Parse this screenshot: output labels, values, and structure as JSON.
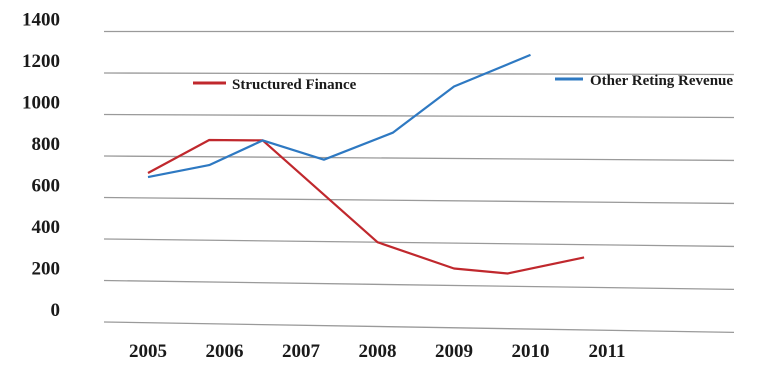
{
  "chart_data": {
    "type": "line",
    "title": "",
    "xlabel": "",
    "ylabel": "",
    "x": [
      "2005",
      "2006",
      "2007",
      "2008",
      "2009",
      "2010",
      "2011"
    ],
    "y_ticks": [
      "1400",
      "1200",
      "1000",
      "800",
      "600",
      "400",
      "200",
      "0"
    ],
    "ylim": [
      0,
      1400
    ],
    "grid": true,
    "legend_position": "top",
    "series": [
      {
        "name": "Structured Finance",
        "color": "#c0282d",
        "points": [
          {
            "x": 2005.0,
            "y": 720
          },
          {
            "x": 2005.8,
            "y": 880
          },
          {
            "x": 2006.5,
            "y": 880
          },
          {
            "x": 2008.0,
            "y": 400
          },
          {
            "x": 2009.0,
            "y": 280
          },
          {
            "x": 2009.7,
            "y": 260
          },
          {
            "x": 2010.7,
            "y": 340
          }
        ]
      },
      {
        "name": "Other Reting Revenue",
        "color": "#2e79c2",
        "points": [
          {
            "x": 2005.0,
            "y": 700
          },
          {
            "x": 2005.8,
            "y": 760
          },
          {
            "x": 2006.5,
            "y": 880
          },
          {
            "x": 2007.3,
            "y": 790
          },
          {
            "x": 2008.2,
            "y": 920
          },
          {
            "x": 2009.0,
            "y": 1140
          },
          {
            "x": 2010.0,
            "y": 1290
          }
        ]
      }
    ]
  }
}
